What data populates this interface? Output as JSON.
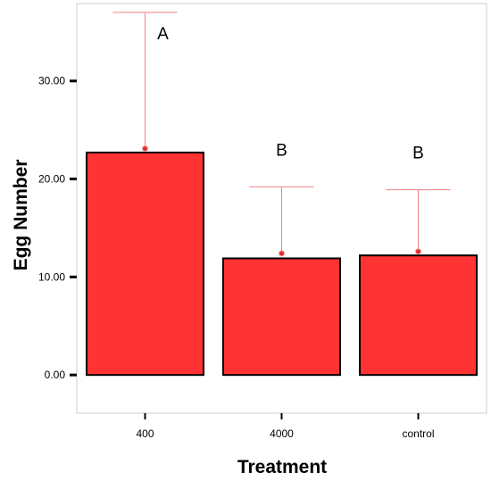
{
  "chart_data": {
    "type": "bar",
    "title": "",
    "xlabel": "Treatment",
    "ylabel": "Egg Number",
    "categories": [
      "400",
      "4000",
      "control"
    ],
    "values": [
      22.7,
      11.9,
      12.2
    ],
    "error_upper": [
      37.0,
      19.2,
      18.9
    ],
    "point_markers": [
      23.1,
      12.4,
      12.6
    ],
    "significance_labels": [
      "A",
      "B",
      "B"
    ],
    "ylim": [
      -3.9,
      37.9
    ],
    "yticks": [
      0,
      10,
      20,
      30
    ],
    "ytick_labels": [
      "0.00",
      "10.00",
      "20.00",
      "30.00"
    ],
    "grid": false,
    "legend": "none",
    "colors": {
      "bar_fill": "#ff3333",
      "bar_stroke": "#000000",
      "error_bar": "#f08080",
      "marker": "#e03030",
      "frame": "#cccccc"
    }
  }
}
